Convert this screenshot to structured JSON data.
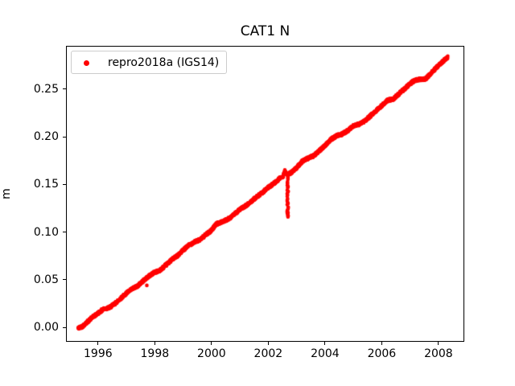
{
  "window": {
    "background": "#ffffff"
  },
  "chart_data": {
    "type": "scatter",
    "title": "CAT1 N",
    "xlabel": "",
    "ylabel": "m",
    "grid": false,
    "xlim": [
      1994.87,
      2008.91
    ],
    "ylim": [
      -0.0152,
      0.2956
    ],
    "x_ticks": {
      "values": [
        1996,
        1998,
        2000,
        2002,
        2004,
        2006,
        2008
      ],
      "labels": [
        "1996",
        "1998",
        "2000",
        "2002",
        "2004",
        "2006",
        "2008"
      ]
    },
    "y_ticks": {
      "values": [
        0.0,
        0.05,
        0.1,
        0.15,
        0.2,
        0.25
      ],
      "labels": [
        "0.00",
        "0.05",
        "0.10",
        "0.15",
        "0.20",
        "0.25"
      ]
    },
    "legend": {
      "position": "upper-left",
      "border_color": "#cccccc",
      "entries": [
        {
          "label": "repro2018a (IGS14)",
          "color": "#ff0000",
          "marker": "dot"
        }
      ]
    },
    "series": [
      {
        "name": "repro2018a (IGS14)",
        "color": "#ff0000",
        "marker": "dot",
        "marker_radius_px": 2.3,
        "x_start": 1995.3,
        "x_end": 2008.33,
        "scatter_step_years": 0.006,
        "noise_halfwidth_m": 0.0014,
        "trend_anchors": [
          [
            1995.3,
            -0.001
          ],
          [
            1995.45,
            0.001
          ],
          [
            1995.6,
            0.005
          ],
          [
            1995.8,
            0.0104
          ],
          [
            1996.0,
            0.0148
          ],
          [
            1996.2,
            0.0192
          ],
          [
            1996.4,
            0.0206
          ],
          [
            1996.6,
            0.025
          ],
          [
            1996.8,
            0.0304
          ],
          [
            1997.0,
            0.0358
          ],
          [
            1997.2,
            0.0402
          ],
          [
            1997.4,
            0.0436
          ],
          [
            1997.6,
            0.049
          ],
          [
            1997.8,
            0.0539
          ],
          [
            1998.0,
            0.0578
          ],
          [
            1998.2,
            0.0602
          ],
          [
            1998.4,
            0.0656
          ],
          [
            1998.6,
            0.071
          ],
          [
            1998.8,
            0.0754
          ],
          [
            1999.0,
            0.0808
          ],
          [
            1999.2,
            0.0862
          ],
          [
            1999.4,
            0.0896
          ],
          [
            1999.6,
            0.092
          ],
          [
            1999.8,
            0.0974
          ],
          [
            2000.0,
            0.1018
          ],
          [
            2000.15,
            0.1081
          ],
          [
            2000.35,
            0.1105
          ],
          [
            2000.55,
            0.1129
          ],
          [
            2000.75,
            0.1173
          ],
          [
            2001.0,
            0.1238
          ],
          [
            2001.25,
            0.1283
          ],
          [
            2001.5,
            0.1348
          ],
          [
            2001.75,
            0.1403
          ],
          [
            2002.0,
            0.1468
          ],
          [
            2002.25,
            0.1523
          ],
          [
            2002.45,
            0.1577
          ],
          [
            2002.52,
            0.1582
          ],
          [
            2002.58,
            0.1645
          ],
          [
            2002.64,
            0.161
          ],
          [
            2002.7,
            0.1602
          ],
          [
            2002.85,
            0.1635
          ],
          [
            2003.0,
            0.1678
          ],
          [
            2003.2,
            0.1742
          ],
          [
            2003.4,
            0.1776
          ],
          [
            2003.6,
            0.18
          ],
          [
            2003.8,
            0.1854
          ],
          [
            2004.0,
            0.1908
          ],
          [
            2004.2,
            0.1972
          ],
          [
            2004.45,
            0.2017
          ],
          [
            2004.6,
            0.203
          ],
          [
            2004.8,
            0.2064
          ],
          [
            2005.0,
            0.2118
          ],
          [
            2005.2,
            0.2132
          ],
          [
            2005.4,
            0.2166
          ],
          [
            2005.6,
            0.222
          ],
          [
            2005.8,
            0.2274
          ],
          [
            2006.0,
            0.2328
          ],
          [
            2006.2,
            0.2382
          ],
          [
            2006.4,
            0.2396
          ],
          [
            2006.6,
            0.245
          ],
          [
            2006.8,
            0.2504
          ],
          [
            2007.0,
            0.2558
          ],
          [
            2007.15,
            0.2591
          ],
          [
            2007.35,
            0.2605
          ],
          [
            2007.55,
            0.2609
          ],
          [
            2007.75,
            0.2673
          ],
          [
            2008.0,
            0.2748
          ],
          [
            2008.15,
            0.279
          ],
          [
            2008.33,
            0.284
          ]
        ],
        "dip_anomaly": {
          "year": 2002.685,
          "value_top": 0.158,
          "value_bottom": 0.116,
          "x_jitter_years": 0.02,
          "points": 34,
          "bottom_cluster_points": 6
        },
        "outlier_points": [
          [
            1997.72,
            0.044
          ]
        ]
      }
    ]
  }
}
